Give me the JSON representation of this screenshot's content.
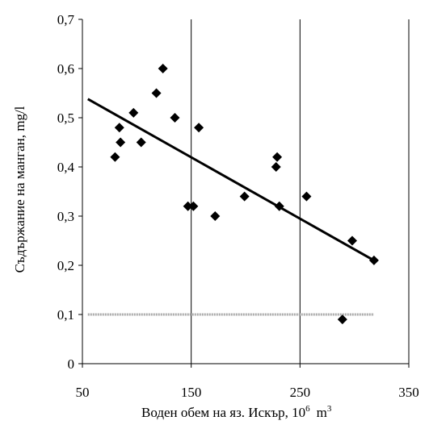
{
  "chart_data": {
    "type": "scatter",
    "title": "",
    "xlabel": "Воден обем на яз. Искър, 10",
    "xlabel_superscript": "6",
    "xlabel_unit": "m",
    "xlabel_unit_superscript": "3",
    "ylabel": "Съдържание на манган, mg/l",
    "xlim": [
      50,
      350
    ],
    "ylim": [
      0,
      0.7
    ],
    "x_ticks": [
      50,
      150,
      250,
      350
    ],
    "x_tick_labels": [
      "50",
      "150",
      "250",
      "350"
    ],
    "y_ticks": [
      0,
      0.1,
      0.2,
      0.3,
      0.4,
      0.5,
      0.6,
      0.7
    ],
    "y_tick_labels": [
      "0",
      "0,1",
      "0,2",
      "0,3",
      "0,4",
      "0,5",
      "0,6",
      "0,7"
    ],
    "grid": "vertical",
    "marker": "diamond",
    "marker_color": "#000000",
    "points": [
      {
        "x": 80,
        "y": 0.42
      },
      {
        "x": 84,
        "y": 0.48
      },
      {
        "x": 85,
        "y": 0.45
      },
      {
        "x": 97,
        "y": 0.51
      },
      {
        "x": 104,
        "y": 0.45
      },
      {
        "x": 118,
        "y": 0.55
      },
      {
        "x": 124,
        "y": 0.6
      },
      {
        "x": 135,
        "y": 0.5
      },
      {
        "x": 147,
        "y": 0.32
      },
      {
        "x": 152,
        "y": 0.32
      },
      {
        "x": 157,
        "y": 0.48
      },
      {
        "x": 172,
        "y": 0.3
      },
      {
        "x": 199,
        "y": 0.34
      },
      {
        "x": 228,
        "y": 0.4
      },
      {
        "x": 229,
        "y": 0.42
      },
      {
        "x": 231,
        "y": 0.32
      },
      {
        "x": 256,
        "y": 0.34
      },
      {
        "x": 289,
        "y": 0.09
      },
      {
        "x": 298,
        "y": 0.25
      },
      {
        "x": 318,
        "y": 0.21
      }
    ],
    "trendline": {
      "x": [
        55,
        318
      ],
      "y": [
        0.538,
        0.21
      ],
      "color": "#000000"
    },
    "reference_line": {
      "y": 0.1,
      "x": [
        55,
        318
      ],
      "color": "#a9a9a9",
      "style": "dotted"
    }
  }
}
